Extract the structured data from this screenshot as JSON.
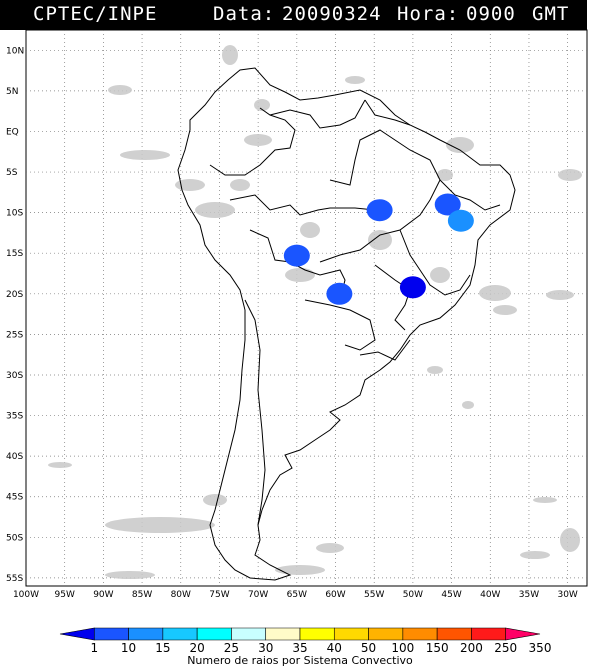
{
  "header": {
    "source": "CPTEC/INPE",
    "date_label": "Data:",
    "date": "20090324",
    "hour_label": "Hora:",
    "hour": "0900",
    "tz": "GMT"
  },
  "lat_labels": [
    "10N",
    "5N",
    "EQ",
    "5S",
    "10S",
    "15S",
    "20S",
    "25S",
    "30S",
    "35S",
    "40S",
    "45S",
    "50S",
    "55S"
  ],
  "lon_labels": [
    "100W",
    "95W",
    "90W",
    "85W",
    "80W",
    "75W",
    "70W",
    "65W",
    "60W",
    "55W",
    "50W",
    "45W",
    "40W",
    "35W",
    "30W"
  ],
  "colorbar": {
    "labels": [
      "1",
      "10",
      "15",
      "20",
      "25",
      "30",
      "35",
      "40",
      "50",
      "100",
      "150",
      "200",
      "250",
      "350"
    ],
    "colors": [
      "#0000ee",
      "#1a55ff",
      "#1a90ff",
      "#17c8ff",
      "#00ffff",
      "#c8ffff",
      "#fffbc8",
      "#ffff00",
      "#ffd900",
      "#ffb300",
      "#ff8c00",
      "#ff5500",
      "#ff1a1a",
      "#ff0066"
    ],
    "title": "Numero de raios por Sistema Convectivo"
  },
  "map": {
    "cloud_color": "#c8c8c8",
    "land_border_color": "#000000",
    "background": "#ffffff"
  },
  "cells": [
    {
      "name": "cell-south-bolivia",
      "lon": -65.0,
      "lat": -15.3,
      "color": "#1a55ff"
    },
    {
      "name": "cell-mato-grosso",
      "lon": -54.3,
      "lat": -9.7,
      "color": "#1a55ff"
    },
    {
      "name": "cell-bahia-north",
      "lon": -45.5,
      "lat": -9.0,
      "color": "#1a55ff"
    },
    {
      "name": "cell-bahia-south",
      "lon": -43.8,
      "lat": -11.0,
      "color": "#1a90ff"
    },
    {
      "name": "cell-paraguay",
      "lon": -59.5,
      "lat": -20.0,
      "color": "#1a55ff"
    },
    {
      "name": "cell-goias",
      "lon": -50.0,
      "lat": -19.2,
      "color": "#0000ee"
    }
  ]
}
